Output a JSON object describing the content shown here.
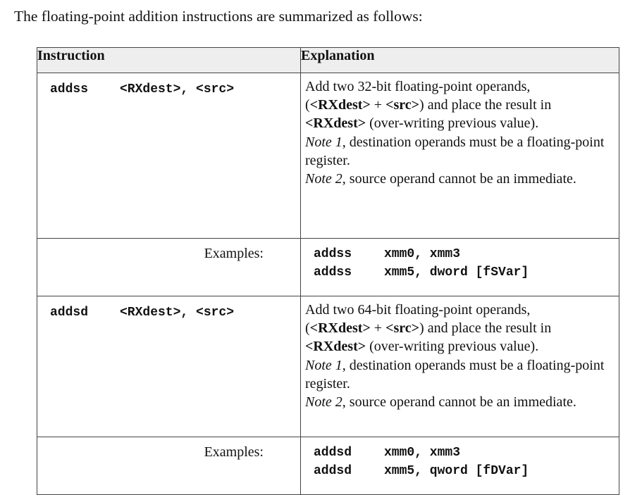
{
  "intro": "The floating-point addition instructions are summarized as follows:",
  "table": {
    "headers": [
      "Instruction",
      "Explanation"
    ],
    "rows": [
      {
        "mnemonic": "addss",
        "operands": "<RXdest>, <src>",
        "explanation": {
          "line1": "Add two 32-bit floating-point operands,",
          "line2_open": "(",
          "line2_dest": "<RXdest>",
          "line2_plus": " + ",
          "line2_src": "<src>",
          "line2_rest": ") and place the result in",
          "line3_dest": "<RXdest>",
          "line3_rest": " (over-writing previous value).",
          "note1_label": "Note 1",
          "note1_text": ", destination operands must be a floating-point register.",
          "note2_label": "Note 2",
          "note2_text": ", source operand cannot be an immediate."
        },
        "examples_label": "Examples:",
        "examples": [
          {
            "mnemonic": "addss",
            "operands": "xmm0, xmm3"
          },
          {
            "mnemonic": "addss",
            "operands": "xmm5, dword [fSVar]"
          }
        ]
      },
      {
        "mnemonic": "addsd",
        "operands": "<RXdest>, <src>",
        "explanation": {
          "line1": "Add two 64-bit floating-point operands,",
          "line2_open": "(",
          "line2_dest": "<RXdest>",
          "line2_plus": " + ",
          "line2_src": "<src>",
          "line2_rest": ") and place the result in",
          "line3_dest": "<RXdest>",
          "line3_rest": " (over-writing previous value).",
          "note1_label": "Note 1",
          "note1_text": ", destination operands must be a floating-point register.",
          "note2_label": "Note 2",
          "note2_text": ", source operand cannot be an immediate."
        },
        "examples_label": "Examples:",
        "examples": [
          {
            "mnemonic": "addsd",
            "operands": "xmm0, xmm3"
          },
          {
            "mnemonic": "addsd",
            "operands": "xmm5, qword [fDVar]"
          }
        ]
      }
    ]
  }
}
